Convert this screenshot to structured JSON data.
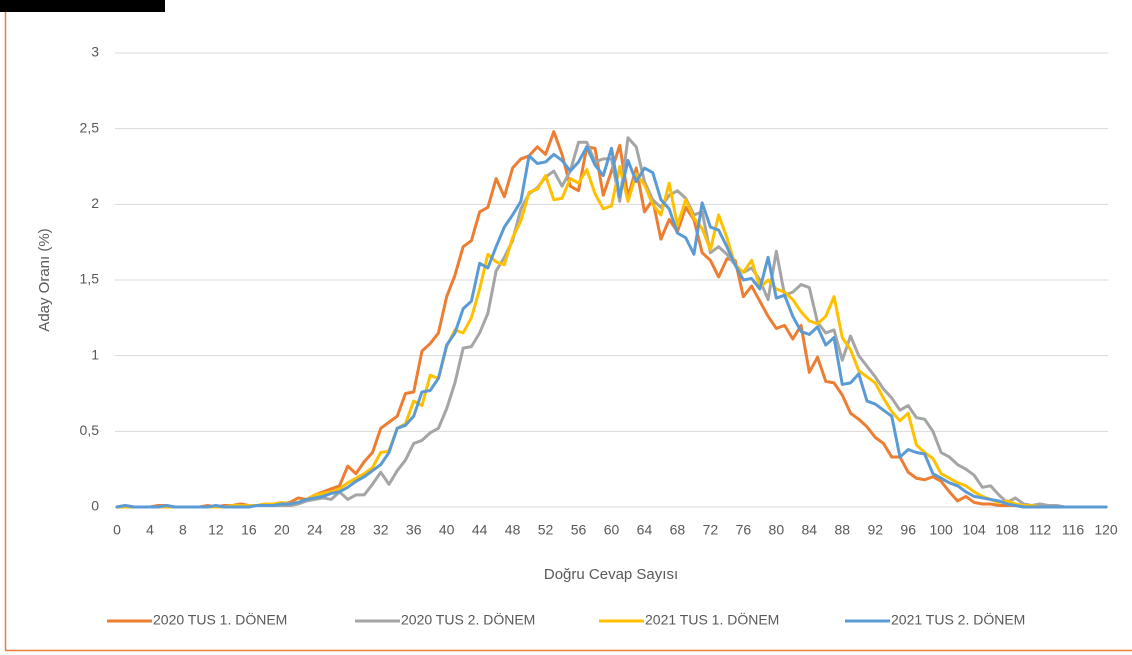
{
  "chart_data": {
    "type": "line",
    "xlabel": "Doğru Cevap Sayısı",
    "ylabel": "Aday Oranı (%)",
    "x": [
      0,
      1,
      2,
      3,
      4,
      5,
      6,
      7,
      8,
      9,
      10,
      11,
      12,
      13,
      14,
      15,
      16,
      17,
      18,
      19,
      20,
      21,
      22,
      23,
      24,
      25,
      26,
      27,
      28,
      29,
      30,
      31,
      32,
      33,
      34,
      35,
      36,
      37,
      38,
      39,
      40,
      41,
      42,
      43,
      44,
      45,
      46,
      47,
      48,
      49,
      50,
      51,
      52,
      53,
      54,
      55,
      56,
      57,
      58,
      59,
      60,
      61,
      62,
      63,
      64,
      65,
      66,
      67,
      68,
      69,
      70,
      71,
      72,
      73,
      74,
      75,
      76,
      77,
      78,
      79,
      80,
      81,
      82,
      83,
      84,
      85,
      86,
      87,
      88,
      89,
      90,
      91,
      92,
      93,
      94,
      95,
      96,
      97,
      98,
      99,
      100,
      101,
      102,
      103,
      104,
      105,
      106,
      107,
      108,
      109,
      110,
      111,
      112,
      113,
      114,
      115,
      116,
      117,
      118,
      119,
      120
    ],
    "xlim": [
      0,
      120
    ],
    "xticks": [
      0,
      4,
      8,
      12,
      16,
      20,
      24,
      28,
      32,
      36,
      40,
      44,
      48,
      52,
      56,
      60,
      64,
      68,
      72,
      76,
      80,
      84,
      88,
      92,
      96,
      100,
      104,
      108,
      112,
      116,
      120
    ],
    "ylim": [
      0,
      3
    ],
    "yticks": [
      0,
      {
        "value": 0.5,
        "label": "0,5"
      },
      1,
      {
        "value": 1.5,
        "label": "1,5"
      },
      2,
      {
        "value": 2.5,
        "label": "2,5"
      },
      3
    ],
    "grid": true,
    "legend": "bottom",
    "series": [
      {
        "name": "2020 TUS 1. DÖNEM",
        "color": "#ed7d31",
        "values": [
          0,
          0.01,
          0,
          0,
          0,
          0.01,
          0.01,
          0,
          0,
          0,
          0,
          0.01,
          0,
          0.01,
          0.01,
          0.02,
          0.01,
          0.01,
          0.02,
          0.01,
          0.02,
          0.03,
          0.06,
          0.05,
          0.08,
          0.1,
          0.12,
          0.14,
          0.27,
          0.22,
          0.3,
          0.36,
          0.52,
          0.56,
          0.6,
          0.75,
          0.76,
          1.03,
          1.08,
          1.15,
          1.39,
          1.53,
          1.72,
          1.76,
          1.95,
          1.98,
          2.17,
          2.05,
          2.24,
          2.3,
          2.32,
          2.38,
          2.33,
          2.48,
          2.33,
          2.12,
          2.09,
          2.38,
          2.37,
          2.06,
          2.22,
          2.39,
          2.05,
          2.24,
          1.95,
          2.03,
          1.77,
          1.9,
          1.82,
          1.98,
          1.9,
          1.68,
          1.63,
          1.52,
          1.64,
          1.63,
          1.39,
          1.46,
          1.36,
          1.26,
          1.18,
          1.2,
          1.11,
          1.2,
          0.89,
          0.99,
          0.83,
          0.82,
          0.74,
          0.62,
          0.58,
          0.53,
          0.46,
          0.42,
          0.33,
          0.33,
          0.23,
          0.19,
          0.18,
          0.2,
          0.17,
          0.1,
          0.04,
          0.07,
          0.03,
          0.02,
          0.02,
          0.01,
          0.01,
          0.01,
          0,
          0,
          0,
          0,
          0,
          0,
          0,
          0,
          0,
          0,
          0
        ]
      },
      {
        "name": "2020 TUS 2. DÖNEM",
        "color": "#a5a5a5",
        "values": [
          0,
          0,
          0,
          0,
          0,
          0,
          0,
          0,
          0,
          0,
          0,
          0,
          0,
          0,
          0,
          0,
          0.01,
          0.01,
          0.01,
          0.01,
          0.01,
          0.01,
          0.02,
          0.04,
          0.05,
          0.06,
          0.05,
          0.1,
          0.05,
          0.08,
          0.08,
          0.15,
          0.23,
          0.15,
          0.24,
          0.31,
          0.42,
          0.44,
          0.49,
          0.52,
          0.65,
          0.82,
          1.05,
          1.06,
          1.15,
          1.28,
          1.56,
          1.65,
          1.76,
          1.97,
          2.07,
          2.11,
          2.18,
          2.22,
          2.12,
          2.22,
          2.41,
          2.41,
          2.28,
          2.3,
          2.3,
          2.02,
          2.44,
          2.38,
          2.15,
          2.03,
          1.98,
          2.06,
          2.09,
          2.04,
          1.93,
          1.95,
          1.68,
          1.72,
          1.67,
          1.6,
          1.55,
          1.58,
          1.5,
          1.37,
          1.69,
          1.4,
          1.42,
          1.47,
          1.45,
          1.22,
          1.15,
          1.17,
          0.97,
          1.13,
          1,
          0.93,
          0.86,
          0.78,
          0.72,
          0.64,
          0.67,
          0.59,
          0.58,
          0.5,
          0.36,
          0.33,
          0.28,
          0.25,
          0.21,
          0.13,
          0.14,
          0.08,
          0.03,
          0.06,
          0.02,
          0.01,
          0.02,
          0.01,
          0.01,
          0,
          0,
          0,
          0,
          0,
          0
        ]
      },
      {
        "name": "2021 TUS 1. DÖNEM",
        "color": "#ffc000",
        "values": [
          0,
          0,
          0,
          0,
          0,
          0,
          0,
          0,
          0,
          0,
          0,
          0,
          0,
          0,
          0.01,
          0.01,
          0.01,
          0.01,
          0.02,
          0.02,
          0.03,
          0.02,
          0.03,
          0.05,
          0.08,
          0.09,
          0.1,
          0.12,
          0.16,
          0.19,
          0.22,
          0.26,
          0.36,
          0.37,
          0.52,
          0.55,
          0.7,
          0.67,
          0.87,
          0.85,
          1.06,
          1.17,
          1.15,
          1.25,
          1.44,
          1.67,
          1.62,
          1.6,
          1.78,
          1.89,
          2.08,
          2.1,
          2.19,
          2.03,
          2.04,
          2.17,
          2.14,
          2.23,
          2.07,
          1.97,
          1.99,
          2.25,
          2.02,
          2.2,
          2.13,
          2,
          1.93,
          2.14,
          1.86,
          2.03,
          1.91,
          1.84,
          1.7,
          1.93,
          1.78,
          1.6,
          1.55,
          1.63,
          1.45,
          1.5,
          1.44,
          1.42,
          1.37,
          1.29,
          1.23,
          1.21,
          1.26,
          1.39,
          1.12,
          1.04,
          0.9,
          0.86,
          0.82,
          0.72,
          0.63,
          0.57,
          0.62,
          0.41,
          0.36,
          0.32,
          0.22,
          0.19,
          0.16,
          0.14,
          0.1,
          0.07,
          0.05,
          0.03,
          0.04,
          0.02,
          0.01,
          0.01,
          0,
          0,
          0,
          0,
          0,
          0,
          0,
          0,
          0
        ]
      },
      {
        "name": "2021 TUS 2. DÖNEM",
        "color": "#5b9bd5",
        "values": [
          0,
          0.01,
          0,
          0,
          0,
          0,
          0.01,
          0,
          0,
          0,
          0,
          0,
          0.01,
          0,
          0,
          0,
          0,
          0.01,
          0.01,
          0.01,
          0.02,
          0.02,
          0.03,
          0.05,
          0.06,
          0.07,
          0.09,
          0.1,
          0.13,
          0.17,
          0.2,
          0.24,
          0.28,
          0.36,
          0.52,
          0.54,
          0.6,
          0.76,
          0.77,
          0.85,
          1.07,
          1.15,
          1.31,
          1.36,
          1.61,
          1.58,
          1.72,
          1.85,
          1.93,
          2.02,
          2.32,
          2.27,
          2.28,
          2.33,
          2.29,
          2.22,
          2.28,
          2.38,
          2.26,
          2.19,
          2.37,
          2.05,
          2.29,
          2.15,
          2.24,
          2.21,
          2.03,
          1.97,
          1.81,
          1.78,
          1.67,
          2.01,
          1.85,
          1.83,
          1.72,
          1.6,
          1.5,
          1.51,
          1.44,
          1.65,
          1.38,
          1.4,
          1.26,
          1.16,
          1.14,
          1.19,
          1.07,
          1.12,
          0.81,
          0.82,
          0.88,
          0.7,
          0.68,
          0.64,
          0.6,
          0.33,
          0.38,
          0.36,
          0.35,
          0.22,
          0.19,
          0.16,
          0.14,
          0.1,
          0.07,
          0.06,
          0.05,
          0.04,
          0.02,
          0.01,
          0,
          0,
          0,
          0,
          0,
          0,
          0,
          0,
          0,
          0,
          0
        ]
      }
    ]
  }
}
